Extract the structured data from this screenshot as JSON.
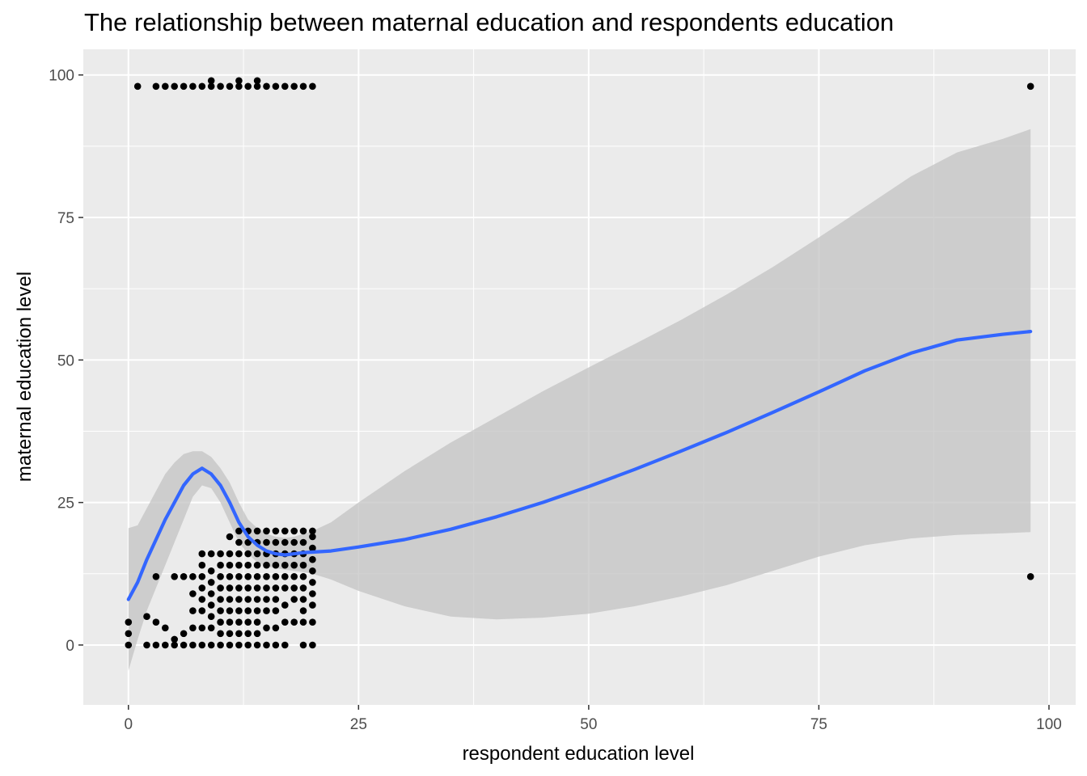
{
  "chart_data": {
    "type": "scatter",
    "title": "The relationship between maternal education and respondents education",
    "xlabel": "respondent education level",
    "ylabel": "maternal education level",
    "xlim": [
      -4.9,
      102.9
    ],
    "ylim": [
      -10.5,
      104.5
    ],
    "x_ticks": [
      0,
      25,
      50,
      75,
      100
    ],
    "x_tick_labels": [
      "0",
      "25",
      "50",
      "75",
      "100"
    ],
    "y_ticks": [
      0,
      25,
      50,
      75,
      100
    ],
    "y_tick_labels": [
      "0",
      "25",
      "50",
      "75",
      "100"
    ],
    "grid": true,
    "legend": "none",
    "colors": {
      "panel": "#ebebeb",
      "grid": "#ffffff",
      "points": "#000000",
      "smooth_line": "#3366ff",
      "ribbon": "#c0c0c0"
    },
    "series": [
      {
        "kind": "points",
        "points": [
          [
            1,
            98
          ],
          [
            3,
            98
          ],
          [
            4,
            98
          ],
          [
            5,
            98
          ],
          [
            6,
            98
          ],
          [
            7,
            98
          ],
          [
            8,
            98
          ],
          [
            9,
            98
          ],
          [
            9,
            99
          ],
          [
            10,
            98
          ],
          [
            11,
            98
          ],
          [
            12,
            98
          ],
          [
            12,
            99
          ],
          [
            13,
            98
          ],
          [
            14,
            98
          ],
          [
            14,
            99
          ],
          [
            15,
            98
          ],
          [
            16,
            98
          ],
          [
            17,
            98
          ],
          [
            18,
            98
          ],
          [
            19,
            98
          ],
          [
            20,
            98
          ],
          [
            98,
            98
          ],
          [
            98,
            12
          ],
          [
            0,
            0
          ],
          [
            0,
            2
          ],
          [
            0,
            4
          ],
          [
            2,
            0
          ],
          [
            2,
            5
          ],
          [
            3,
            0
          ],
          [
            3,
            4
          ],
          [
            3,
            12
          ],
          [
            4,
            0
          ],
          [
            4,
            3
          ],
          [
            5,
            0
          ],
          [
            5,
            1
          ],
          [
            5,
            12
          ],
          [
            6,
            0
          ],
          [
            6,
            2
          ],
          [
            6,
            12
          ],
          [
            7,
            0
          ],
          [
            7,
            3
          ],
          [
            7,
            6
          ],
          [
            7,
            9
          ],
          [
            7,
            12
          ],
          [
            8,
            0
          ],
          [
            8,
            3
          ],
          [
            8,
            6
          ],
          [
            8,
            8
          ],
          [
            8,
            10
          ],
          [
            8,
            12
          ],
          [
            8,
            14
          ],
          [
            8,
            16
          ],
          [
            9,
            0
          ],
          [
            9,
            3
          ],
          [
            9,
            5
          ],
          [
            9,
            7
          ],
          [
            9,
            9
          ],
          [
            9,
            11
          ],
          [
            9,
            13
          ],
          [
            9,
            16
          ],
          [
            10,
            0
          ],
          [
            10,
            2
          ],
          [
            10,
            4
          ],
          [
            10,
            6
          ],
          [
            10,
            8
          ],
          [
            10,
            10
          ],
          [
            10,
            12
          ],
          [
            10,
            14
          ],
          [
            10,
            16
          ],
          [
            11,
            0
          ],
          [
            11,
            2
          ],
          [
            11,
            4
          ],
          [
            11,
            6
          ],
          [
            11,
            8
          ],
          [
            11,
            10
          ],
          [
            11,
            12
          ],
          [
            11,
            14
          ],
          [
            11,
            16
          ],
          [
            11,
            19
          ],
          [
            12,
            0
          ],
          [
            12,
            2
          ],
          [
            12,
            4
          ],
          [
            12,
            6
          ],
          [
            12,
            8
          ],
          [
            12,
            10
          ],
          [
            12,
            12
          ],
          [
            12,
            14
          ],
          [
            12,
            16
          ],
          [
            12,
            18
          ],
          [
            12,
            20
          ],
          [
            13,
            0
          ],
          [
            13,
            2
          ],
          [
            13,
            4
          ],
          [
            13,
            6
          ],
          [
            13,
            8
          ],
          [
            13,
            10
          ],
          [
            13,
            12
          ],
          [
            13,
            14
          ],
          [
            13,
            16
          ],
          [
            13,
            18
          ],
          [
            13,
            20
          ],
          [
            14,
            0
          ],
          [
            14,
            2
          ],
          [
            14,
            4
          ],
          [
            14,
            6
          ],
          [
            14,
            8
          ],
          [
            14,
            10
          ],
          [
            14,
            12
          ],
          [
            14,
            14
          ],
          [
            14,
            16
          ],
          [
            14,
            18
          ],
          [
            14,
            20
          ],
          [
            15,
            0
          ],
          [
            15,
            3
          ],
          [
            15,
            6
          ],
          [
            15,
            8
          ],
          [
            15,
            10
          ],
          [
            15,
            12
          ],
          [
            15,
            14
          ],
          [
            15,
            16
          ],
          [
            15,
            18
          ],
          [
            15,
            20
          ],
          [
            16,
            0
          ],
          [
            16,
            3
          ],
          [
            16,
            6
          ],
          [
            16,
            8
          ],
          [
            16,
            10
          ],
          [
            16,
            12
          ],
          [
            16,
            14
          ],
          [
            16,
            16
          ],
          [
            16,
            18
          ],
          [
            16,
            20
          ],
          [
            17,
            0
          ],
          [
            17,
            4
          ],
          [
            17,
            7
          ],
          [
            17,
            10
          ],
          [
            17,
            12
          ],
          [
            17,
            14
          ],
          [
            17,
            16
          ],
          [
            17,
            18
          ],
          [
            17,
            20
          ],
          [
            18,
            4
          ],
          [
            18,
            8
          ],
          [
            18,
            10
          ],
          [
            18,
            12
          ],
          [
            18,
            14
          ],
          [
            18,
            16
          ],
          [
            18,
            18
          ],
          [
            18,
            20
          ],
          [
            19,
            0
          ],
          [
            19,
            4
          ],
          [
            19,
            6
          ],
          [
            19,
            8
          ],
          [
            19,
            10
          ],
          [
            19,
            12
          ],
          [
            19,
            14
          ],
          [
            19,
            16
          ],
          [
            19,
            18
          ],
          [
            19,
            20
          ],
          [
            20,
            0
          ],
          [
            20,
            4
          ],
          [
            20,
            7
          ],
          [
            20,
            9
          ],
          [
            20,
            11
          ],
          [
            20,
            13
          ],
          [
            20,
            15
          ],
          [
            20,
            17
          ],
          [
            20,
            19
          ],
          [
            20,
            20
          ]
        ]
      },
      {
        "kind": "smooth",
        "x": [
          0,
          1,
          2,
          3,
          4,
          5,
          6,
          7,
          8,
          9,
          10,
          11,
          12,
          13,
          14,
          15,
          16,
          17,
          18,
          19,
          20,
          22,
          25,
          30,
          35,
          40,
          45,
          50,
          55,
          60,
          65,
          70,
          75,
          80,
          85,
          90,
          95,
          98
        ],
        "y": [
          8,
          11,
          15,
          18.5,
          22,
          25,
          28,
          30,
          31,
          30,
          28,
          25,
          21.5,
          19,
          17.5,
          16.5,
          16,
          15.8,
          16,
          16.2,
          16.3,
          16.5,
          17.2,
          18.5,
          20.3,
          22.5,
          25,
          27.8,
          30.8,
          34,
          37.3,
          40.8,
          44.4,
          48.1,
          51.2,
          53.5,
          54.5,
          55
        ],
        "lower": [
          -4.5,
          1,
          6,
          10,
          14,
          18,
          22,
          26,
          28,
          27.5,
          25,
          21.5,
          18,
          16,
          14.5,
          13.8,
          13.5,
          13.2,
          13,
          12.8,
          12.5,
          11.5,
          9.5,
          6.8,
          5.0,
          4.5,
          4.8,
          5.5,
          6.8,
          8.5,
          10.5,
          13,
          15.5,
          17.5,
          18.7,
          19.3,
          19.6,
          19.8
        ],
        "upper": [
          20.5,
          21,
          24,
          27,
          30,
          32,
          33.5,
          34,
          34,
          33,
          31,
          28.5,
          25,
          22,
          20.5,
          19.5,
          19,
          18.8,
          19,
          19.5,
          20,
          21.5,
          25,
          30.5,
          35.5,
          40,
          44.5,
          48.7,
          52.8,
          57,
          61.5,
          66.3,
          71.5,
          76.8,
          82.2,
          86.4,
          88.8,
          90.5
        ]
      }
    ]
  }
}
